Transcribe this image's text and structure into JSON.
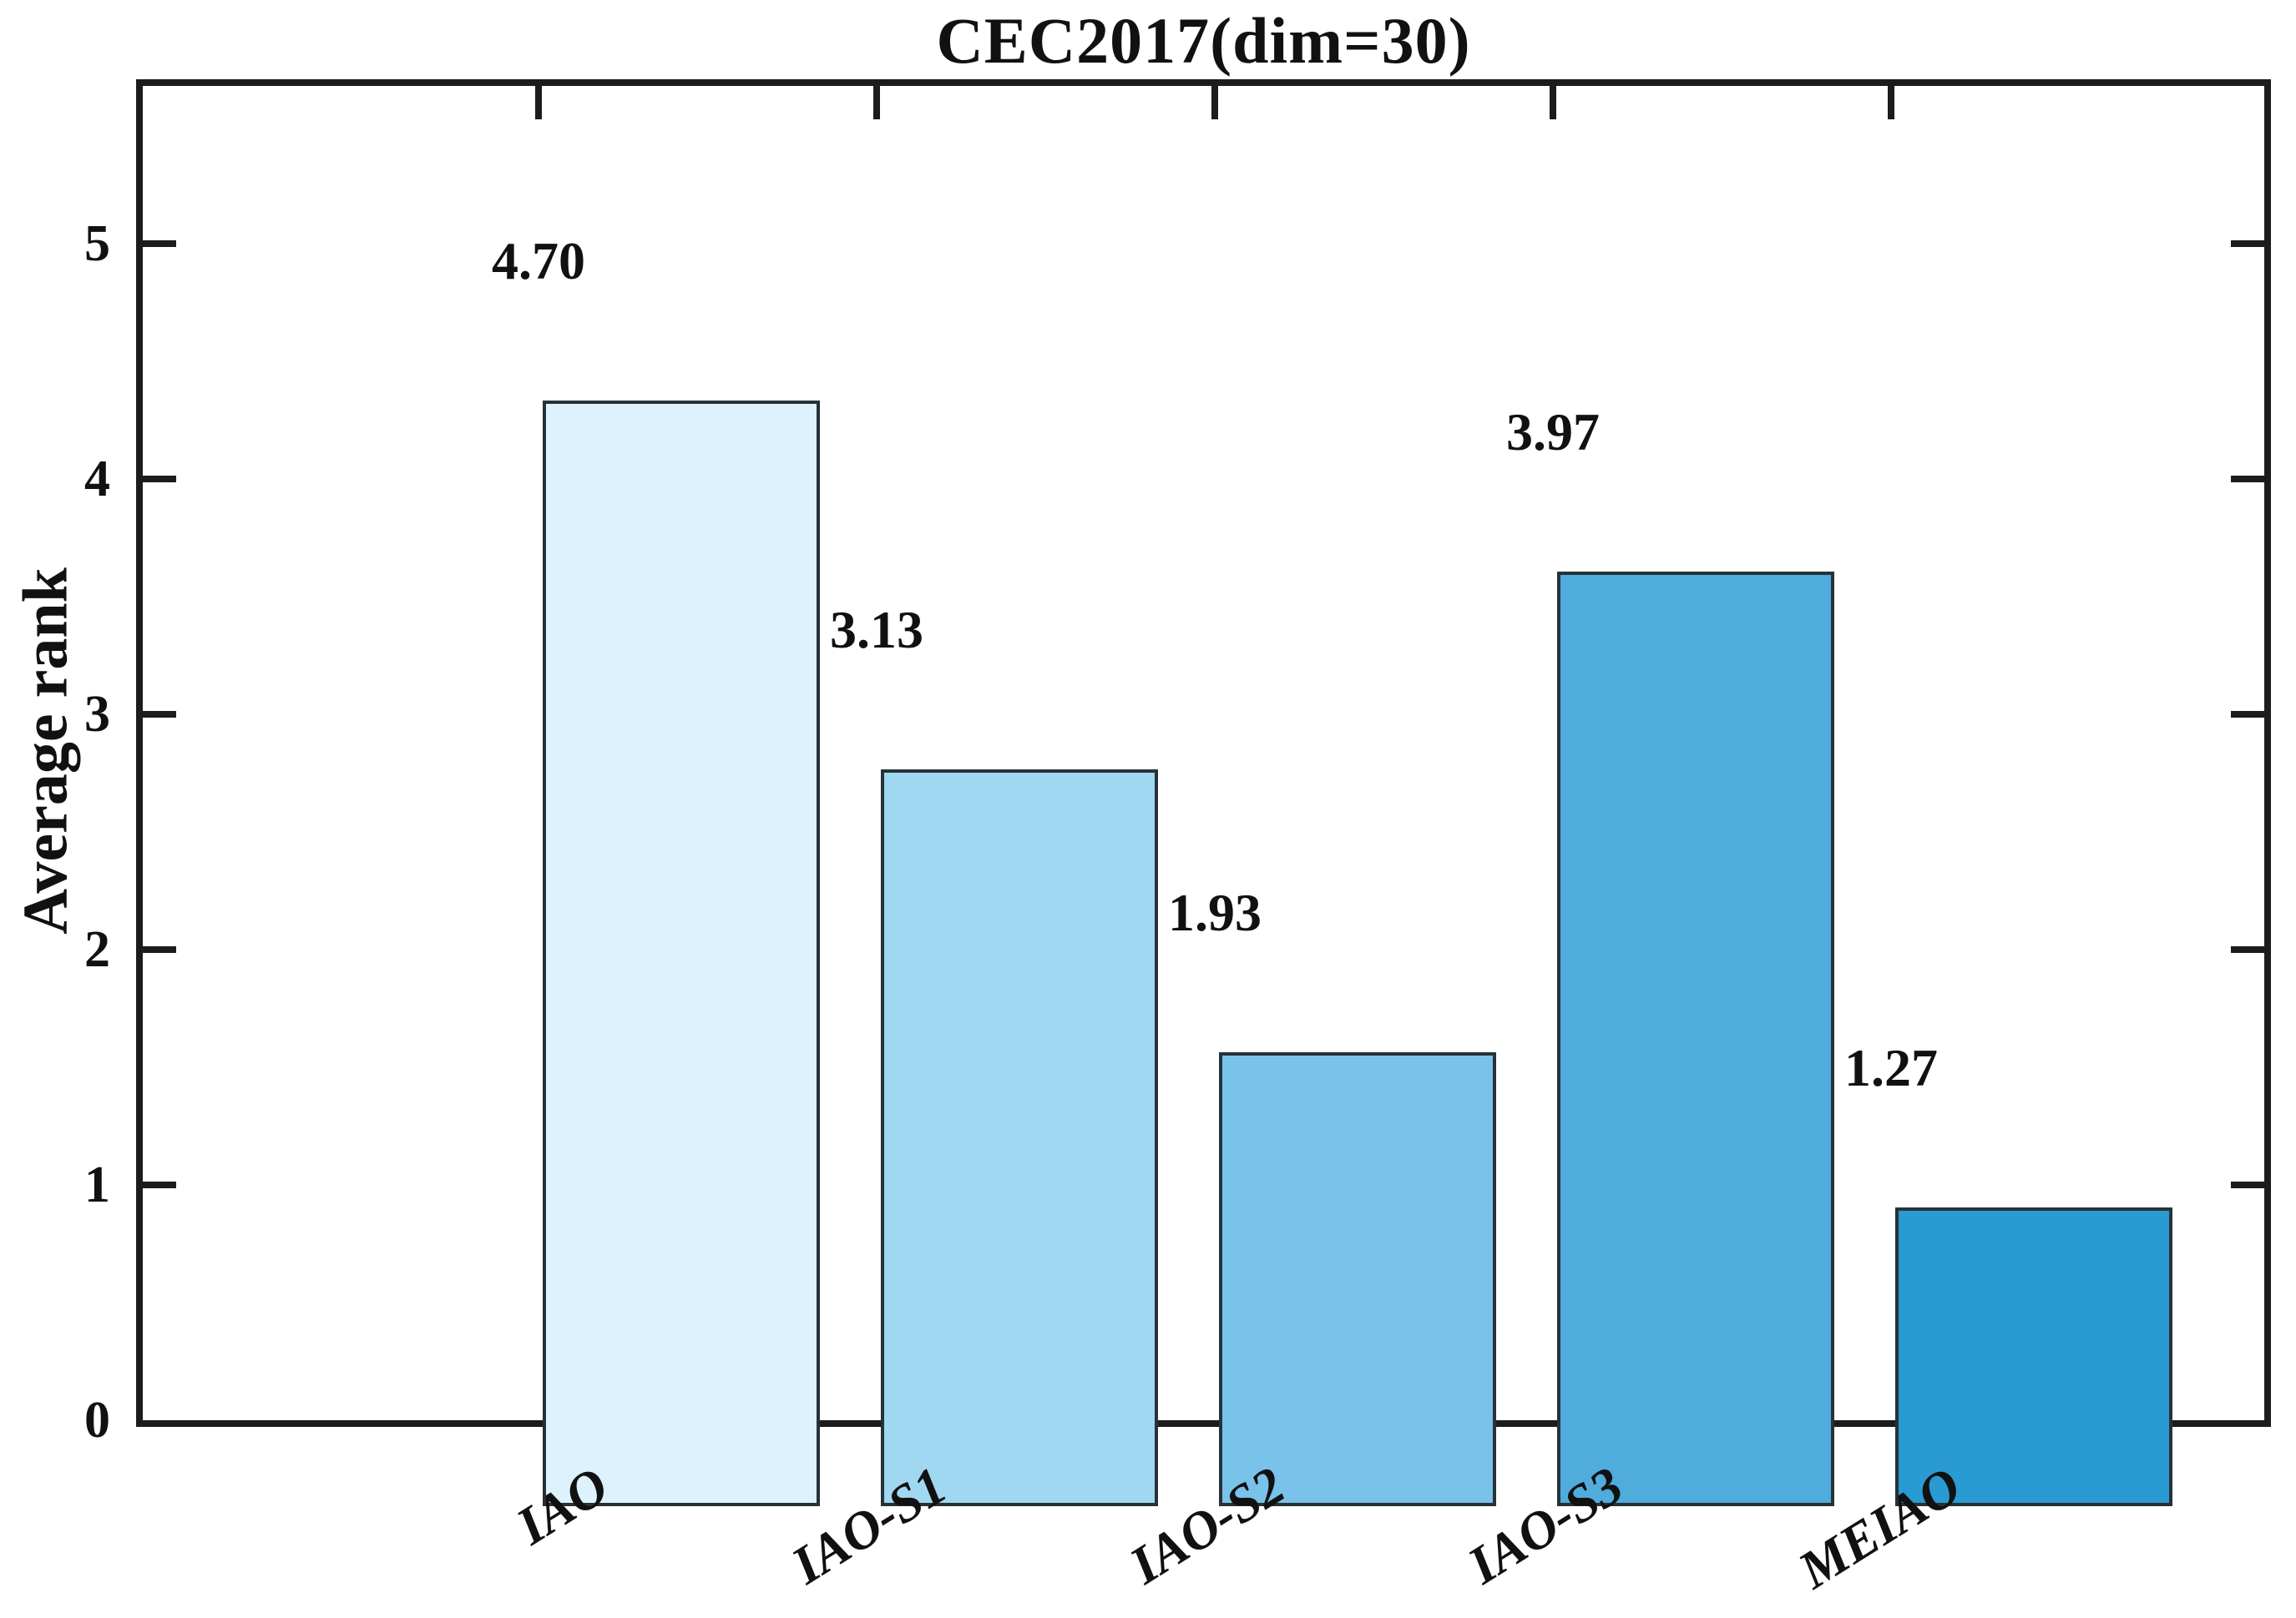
{
  "figure": {
    "background_color": "#ffffff",
    "text_color": "#111111"
  },
  "chart_data": {
    "type": "bar",
    "title": "CEC2017(dim=30)",
    "xlabel": "",
    "ylabel": "Average rank",
    "categories": [
      "IAO",
      "IAO-S1",
      "IAO-S2",
      "IAO-S3",
      "MEIAO"
    ],
    "values": [
      4.7,
      3.13,
      1.93,
      3.97,
      1.27
    ],
    "value_labels": [
      "4.70",
      "3.13",
      "1.93",
      "3.97",
      "1.27"
    ],
    "bar_colors": [
      "#ddf2fc",
      "#a0d8f1",
      "#79c2e9",
      "#4facdc",
      "#2a9ad3"
    ],
    "bar_edge_color": "#263238",
    "axis_color": "#1c1c1c",
    "yticks": [
      0,
      1,
      2,
      3,
      4,
      5
    ],
    "ylim": [
      0,
      5.67
    ],
    "grid": false,
    "legend_position": "none",
    "x_tick_rotation_deg": 32,
    "ticks_direction": "in",
    "box": true
  }
}
